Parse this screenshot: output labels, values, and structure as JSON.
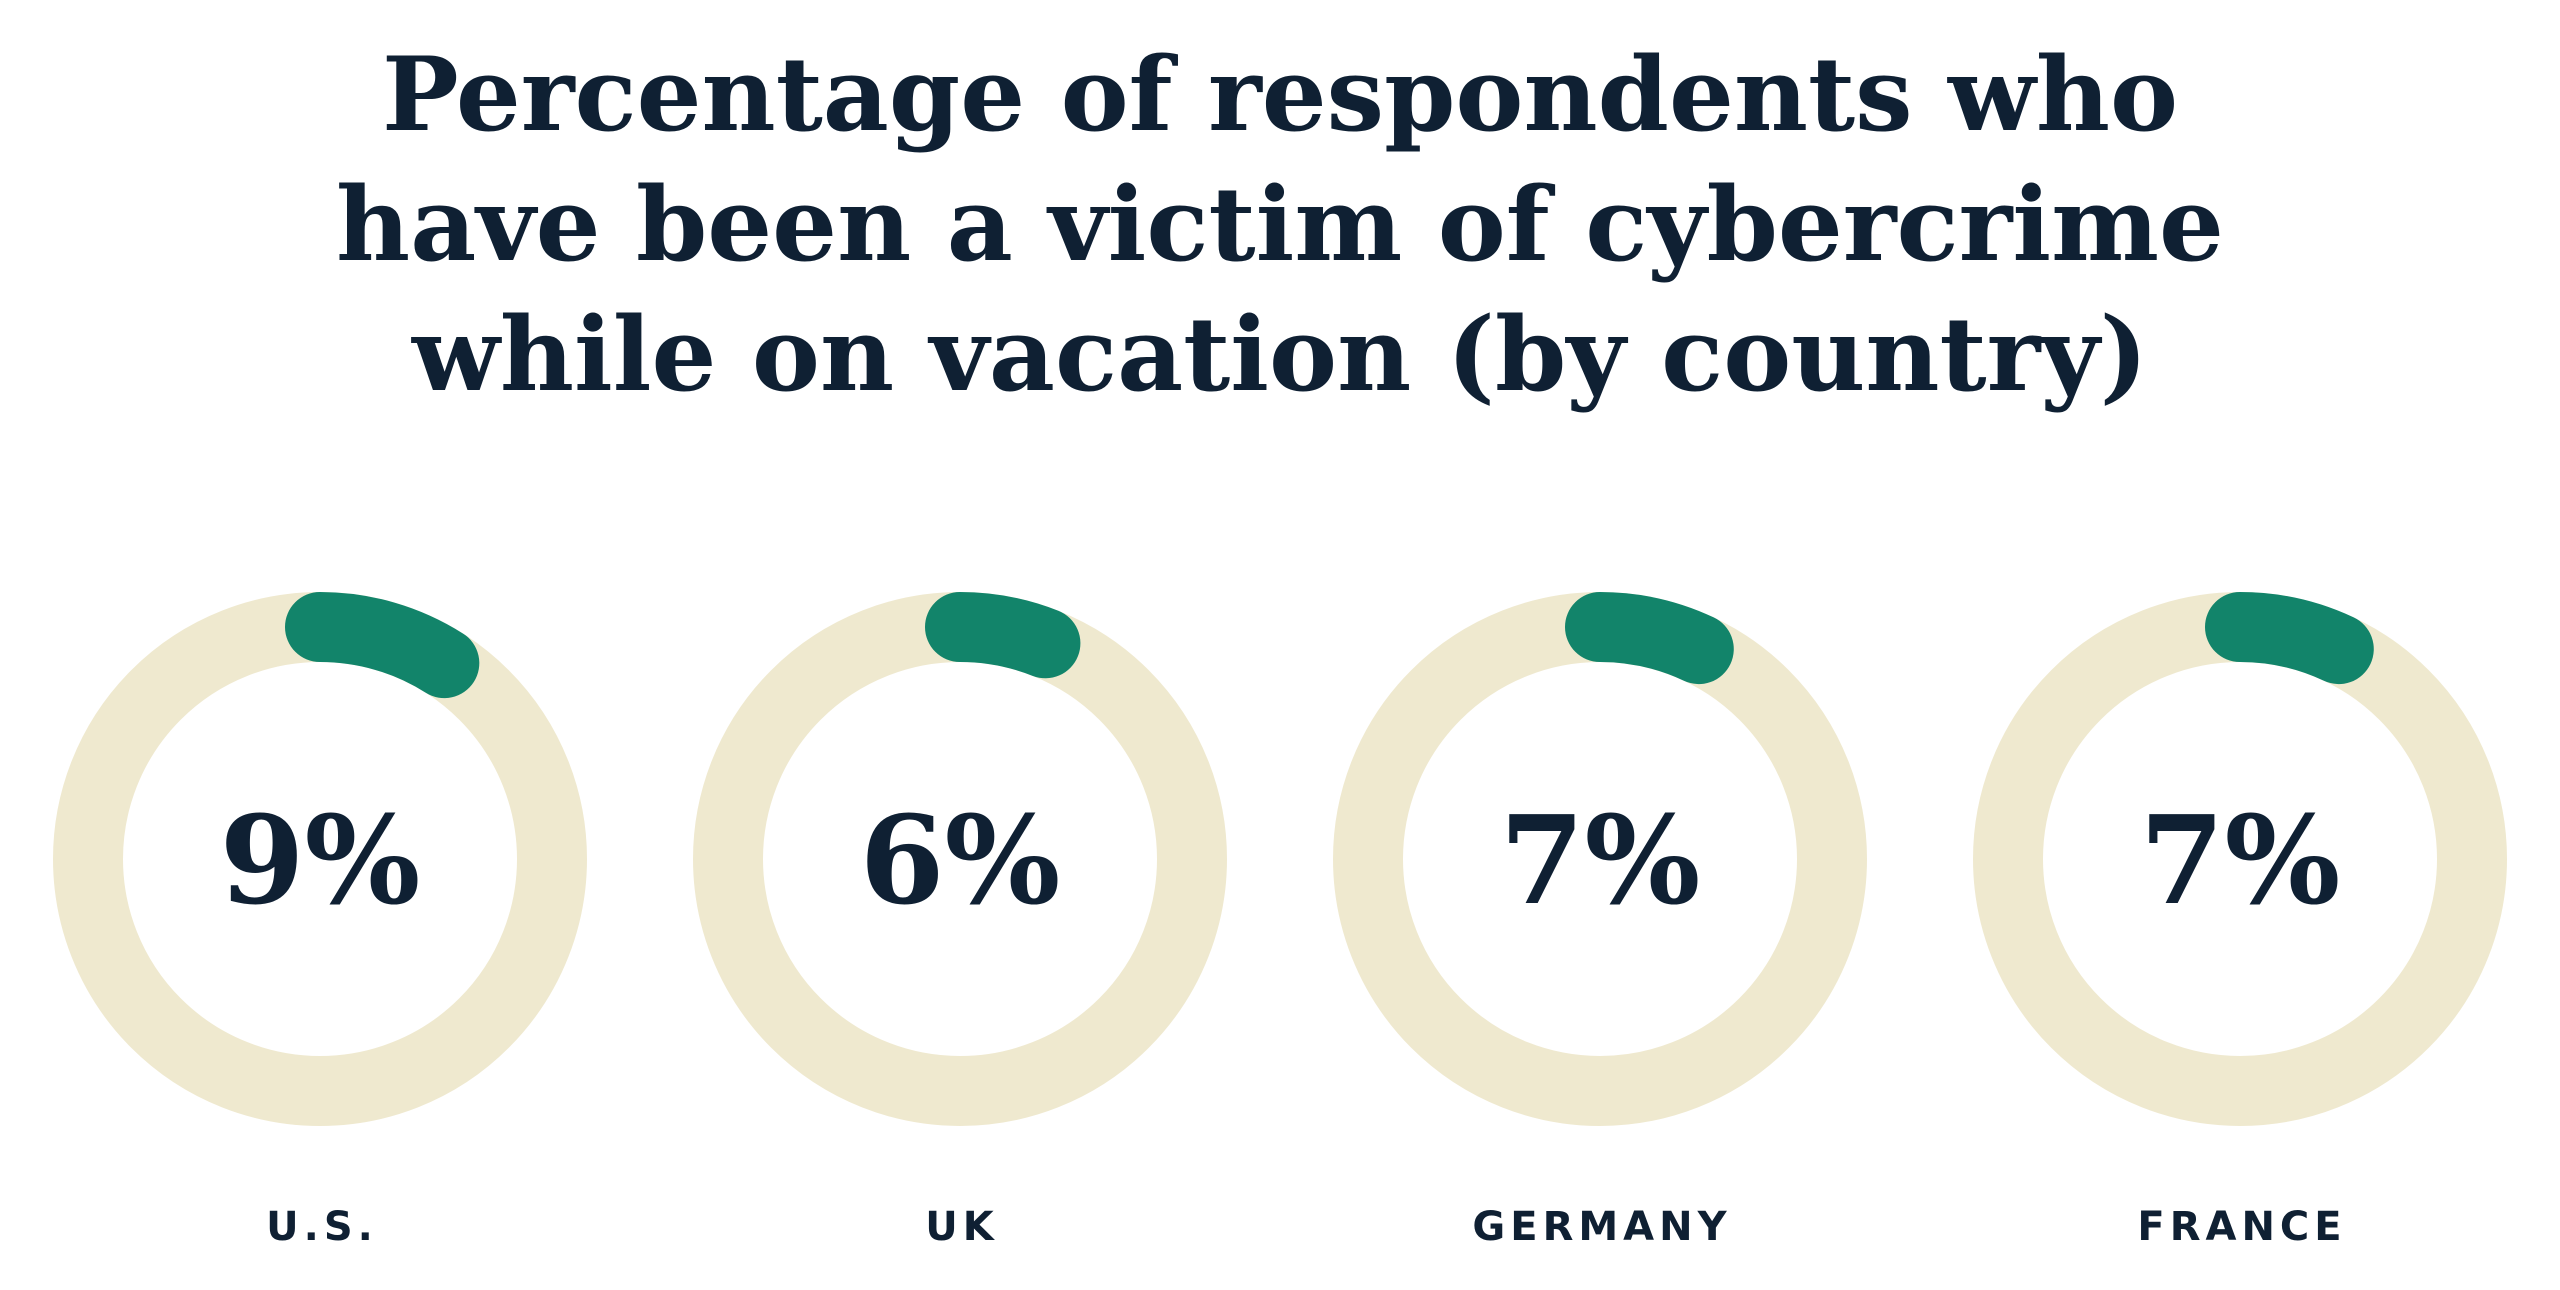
{
  "chart_data": {
    "type": "donut",
    "title": "Percentage of respondents who have been a victim of cybercrime while on vacation (by country)",
    "title_lines": [
      "Percentage of respondents who",
      "have been a victim of cybercrime",
      "while on vacation (by country)"
    ],
    "categories": [
      "U.S.",
      "UK",
      "GERMANY",
      "FRANCE"
    ],
    "values": [
      9,
      6,
      7,
      7
    ],
    "labels": [
      "9%",
      "6%",
      "7%",
      "7%"
    ],
    "unit": "%",
    "max": 100,
    "colors": {
      "filled": "#12846a",
      "track": "#efe9cf",
      "text": "#0f2033"
    }
  }
}
